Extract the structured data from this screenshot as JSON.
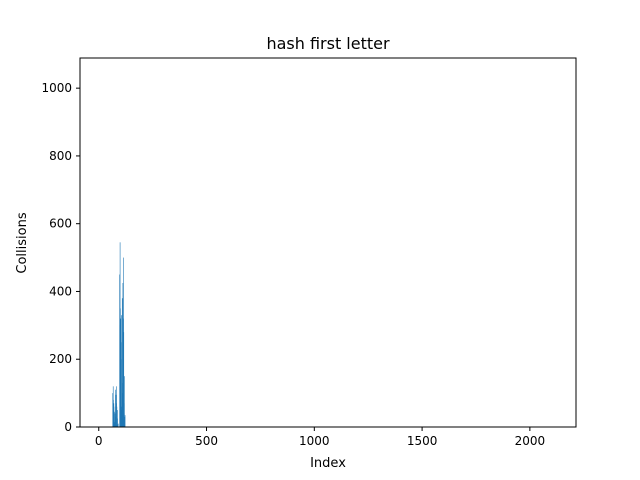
{
  "chart_data": {
    "type": "bar",
    "title": "hash first letter",
    "xlabel": "Index",
    "ylabel": "Collisions",
    "xlim": [
      -87,
      2214
    ],
    "ylim": [
      0,
      1089
    ],
    "xticks": [
      0,
      500,
      1000,
      1500,
      2000
    ],
    "yticks": [
      0,
      200,
      400,
      600,
      800,
      1000
    ],
    "grid": false,
    "bar_color": "#1f77b4",
    "x": [
      65,
      66,
      67,
      68,
      69,
      70,
      71,
      72,
      73,
      74,
      75,
      76,
      77,
      78,
      79,
      80,
      81,
      82,
      83,
      84,
      85,
      86,
      87,
      88,
      89,
      90,
      97,
      98,
      99,
      100,
      101,
      102,
      103,
      104,
      105,
      106,
      107,
      108,
      109,
      110,
      111,
      112,
      113,
      114,
      115,
      116,
      117,
      118,
      119,
      120,
      121,
      122
    ],
    "values": [
      100,
      60,
      120,
      80,
      50,
      70,
      30,
      40,
      45,
      10,
      15,
      60,
      110,
      40,
      30,
      95,
      5,
      70,
      120,
      60,
      20,
      25,
      50,
      2,
      8,
      10,
      450,
      300,
      545,
      350,
      250,
      320,
      180,
      200,
      330,
      60,
      50,
      250,
      380,
      130,
      100,
      425,
      20,
      320,
      500,
      280,
      70,
      40,
      150,
      5,
      30,
      35
    ]
  }
}
